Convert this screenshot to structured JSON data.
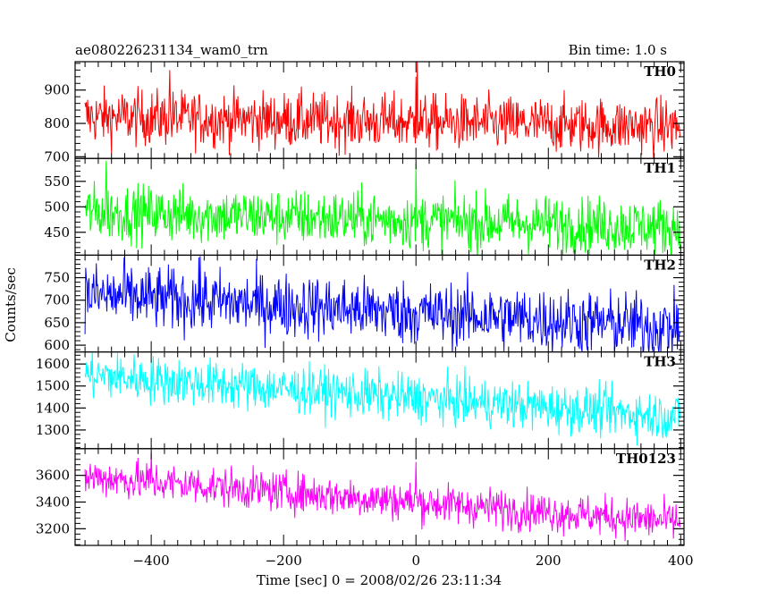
{
  "chart_data": {
    "type": "line",
    "title_left": "ae080226231134_wam0_trn",
    "title_right": "Bin time: 1.0 s",
    "ylabel": "Counts/sec",
    "xlabel": "Time [sec] 0 = 2008/02/26 23:11:34",
    "xlim": [
      -515,
      405
    ],
    "x_ticks": [
      -400,
      -200,
      0,
      200,
      400
    ],
    "x_tick_labels": [
      "−400",
      "−200",
      "0",
      "200",
      "400"
    ],
    "grid": false,
    "panels": [
      {
        "name": "TH0",
        "color": "#ff0000",
        "ylim": [
          695,
          985
        ],
        "y_ticks": [
          700,
          800,
          900
        ],
        "y_tick_labels": [
          "700",
          "800",
          "900"
        ],
        "x_range": [
          -500,
          399
        ],
        "start_level": 820,
        "end_level": 790,
        "noise": 42,
        "spikes": [
          [
            -372,
            960
          ],
          [
            2,
            990
          ],
          [
            0,
            940
          ]
        ]
      },
      {
        "name": "TH1",
        "color": "#00ff00",
        "ylim": [
          405,
          595
        ],
        "y_ticks": [
          450,
          500,
          550
        ],
        "y_tick_labels": [
          "450",
          "500",
          "550"
        ],
        "x_range": [
          -500,
          399
        ],
        "start_level": 490,
        "end_level": 460,
        "noise": 28,
        "spikes": [
          [
            -468,
            590
          ],
          [
            0,
            585
          ]
        ]
      },
      {
        "name": "TH2",
        "color": "#0000ff",
        "ylim": [
          585,
          800
        ],
        "y_ticks": [
          600,
          650,
          700,
          750
        ],
        "y_tick_labels": [
          "600",
          "650",
          "700",
          "750"
        ],
        "x_range": [
          -500,
          399
        ],
        "start_level": 712,
        "end_level": 640,
        "noise": 36,
        "spikes": [
          [
            -328,
            795
          ],
          [
            -440,
            790
          ]
        ]
      },
      {
        "name": "TH3",
        "color": "#00ffff",
        "ylim": [
          1215,
          1655
        ],
        "y_ticks": [
          1300,
          1400,
          1500,
          1600
        ],
        "y_tick_labels": [
          "1300",
          "1400",
          "1500",
          "1600"
        ],
        "x_range": [
          -500,
          399
        ],
        "start_level": 1550,
        "end_level": 1360,
        "noise": 55,
        "spikes": []
      },
      {
        "name": "TH0123",
        "color": "#ff00ff",
        "ylim": [
          3075,
          3800
        ],
        "y_ticks": [
          3200,
          3400,
          3600
        ],
        "y_tick_labels": [
          "3200",
          "3400",
          "3600"
        ],
        "x_range": [
          -500,
          399
        ],
        "start_level": 3590,
        "end_level": 3250,
        "noise": 75,
        "spikes": [
          [
            -400,
            3770
          ],
          [
            0,
            3700
          ],
          [
            400,
            3080
          ]
        ]
      }
    ]
  }
}
